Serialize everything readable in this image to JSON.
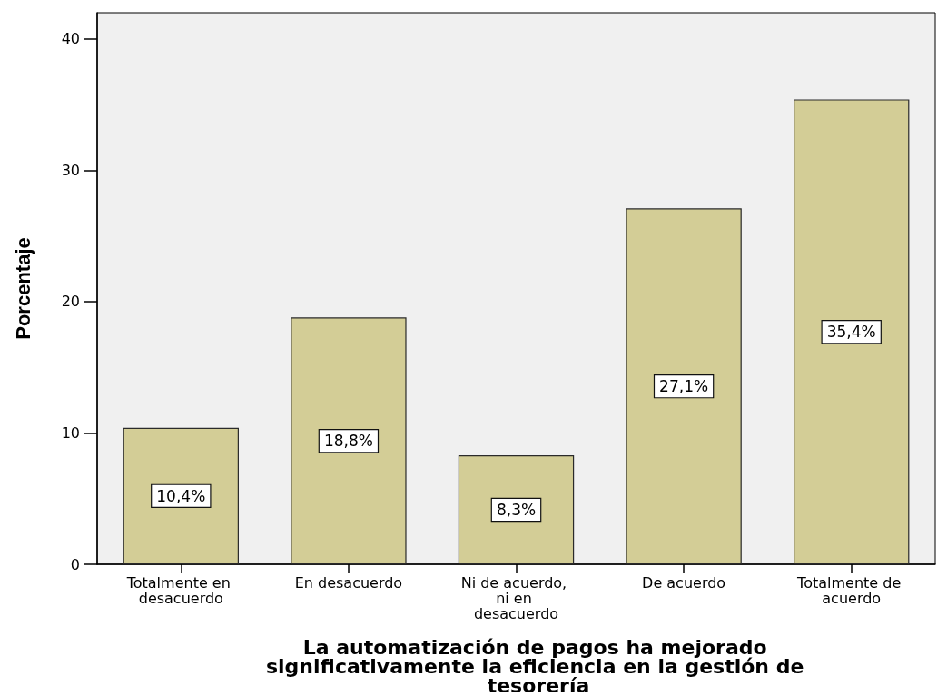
{
  "chart_data": {
    "type": "bar",
    "ylabel": "Porcentaje",
    "xlabel": "La automatización de pagos ha mejorado significativamente la eficiencia en la gestión de tesorería",
    "categories": [
      "Totalmente en desacuerdo",
      "En desacuerdo",
      "Ni de acuerdo, ni en desacuerdo",
      "De acuerdo",
      "Totalmente de acuerdo"
    ],
    "values": [
      10.4,
      18.8,
      8.3,
      27.1,
      35.4
    ],
    "value_labels": [
      "10,4%",
      "18,8%",
      "8,3%",
      "27,1%",
      "35,4%"
    ],
    "color": "#d3cd96",
    "ylim": [
      0,
      42
    ],
    "yticks": [
      0,
      10,
      20,
      30,
      40
    ]
  }
}
